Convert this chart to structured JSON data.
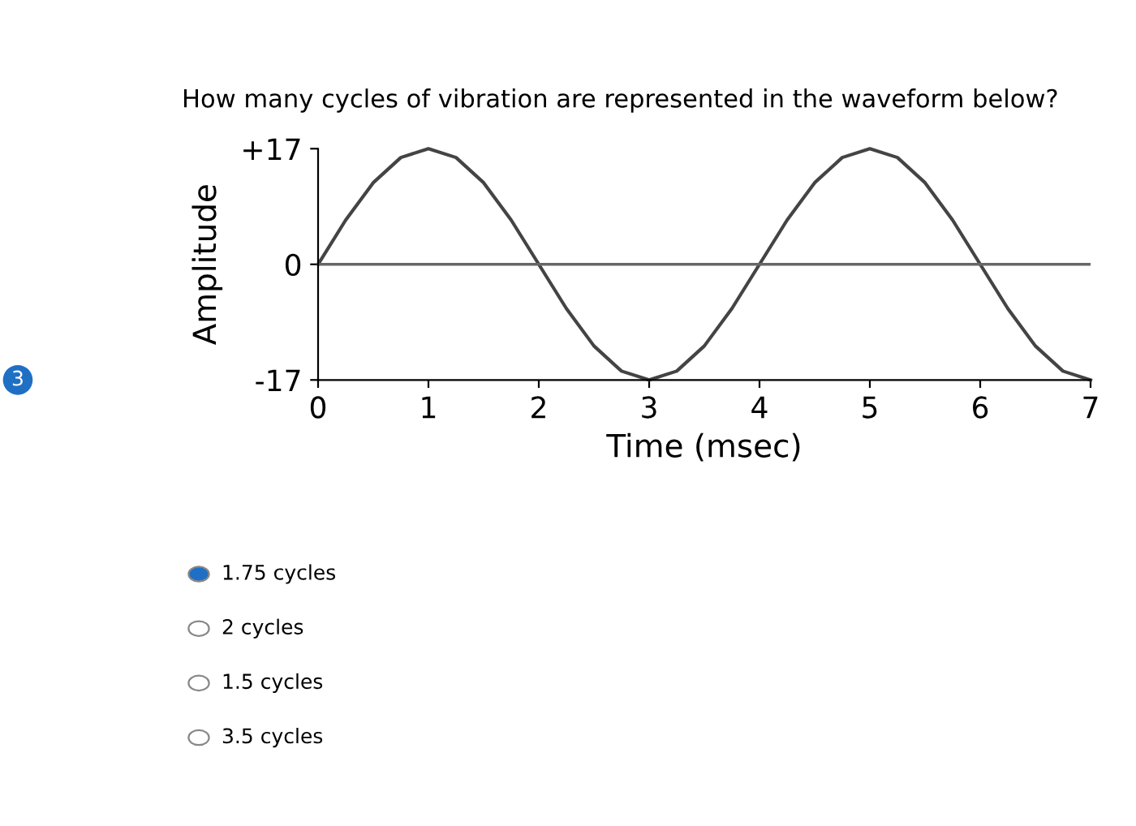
{
  "chart_data": {
    "type": "line",
    "title": "How many cycles of vibration are represented in the waveform below?",
    "xlabel": "Time (msec)",
    "ylabel": "Amplitude",
    "x": [
      0,
      0.25,
      0.5,
      0.75,
      1,
      1.25,
      1.5,
      1.75,
      2,
      2.25,
      2.5,
      2.75,
      3,
      3.25,
      3.5,
      3.75,
      4,
      4.25,
      4.5,
      4.75,
      5,
      5.25,
      5.5,
      5.75,
      6,
      6.25,
      6.5,
      6.75,
      7
    ],
    "series": [
      {
        "color": "#444444",
        "values": [
          0,
          6.5,
          12,
          15.7,
          17,
          15.7,
          12,
          6.5,
          0,
          -6.5,
          -12,
          -15.7,
          -17,
          -15.7,
          -12,
          -6.5,
          0,
          6.5,
          12,
          15.7,
          17,
          15.7,
          12,
          6.5,
          0,
          -6.5,
          -12,
          -15.7,
          -17
        ]
      }
    ],
    "xlim": [
      0,
      7
    ],
    "xticks": [
      0,
      1,
      2,
      3,
      4,
      5,
      6,
      7
    ],
    "ylim": [
      -17,
      17
    ],
    "yticks": [
      {
        "value": 17,
        "label": "+17"
      },
      0,
      -17
    ],
    "ref_lines": [
      {
        "axis": "y",
        "value": 0,
        "color": "#666666"
      }
    ],
    "grid": false,
    "legend": false,
    "marker": "none",
    "line_style": "solid",
    "annotations": [
      "3",
      "1.75 cycles",
      "2 cycles",
      "1.5 cycles",
      "3.5 cycles"
    ]
  }
}
